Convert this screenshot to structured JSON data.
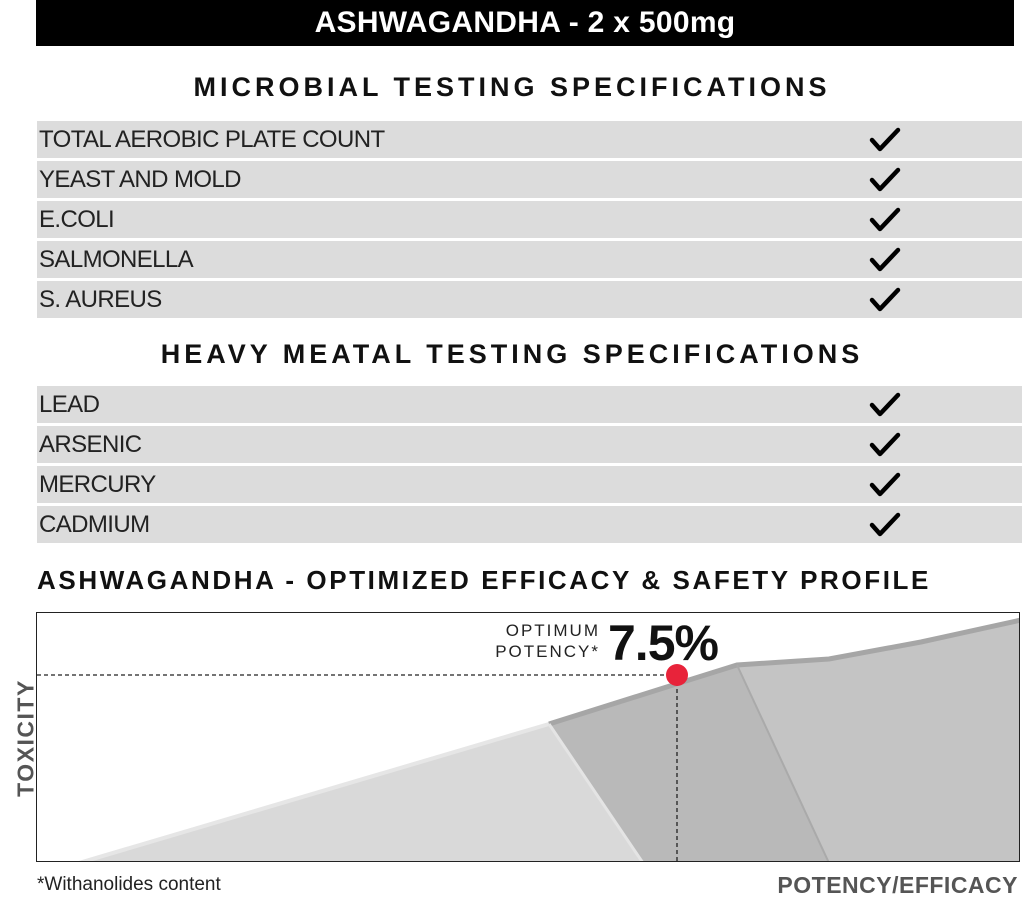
{
  "title": "ASHWAGANDHA - 2 x 500mg",
  "microbial": {
    "heading": "MICROBIAL TESTING SPECIFICATIONS",
    "rows": [
      {
        "label": "TOTAL AEROBIC PLATE COUNT",
        "passed": true
      },
      {
        "label": "YEAST AND MOLD",
        "passed": true
      },
      {
        "label": "E.COLI",
        "passed": true
      },
      {
        "label": "SALMONELLA",
        "passed": true
      },
      {
        "label": "S. AUREUS",
        "passed": true
      }
    ]
  },
  "heavy_metal": {
    "heading": "HEAVY MEATAL TESTING SPECIFICATIONS",
    "rows": [
      {
        "label": "LEAD",
        "passed": true
      },
      {
        "label": "ARSENIC",
        "passed": true
      },
      {
        "label": "MERCURY",
        "passed": true
      },
      {
        "label": "CADMIUM",
        "passed": true
      }
    ]
  },
  "profile": {
    "heading": "ASHWAGANDHA - OPTIMIZED EFFICACY & SAFETY PROFILE",
    "optimum_label_line1": "OPTIMUM",
    "optimum_label_line2": "POTENCY*",
    "optimum_value": "7.5%",
    "y_label": "TOXICITY",
    "x_label": "POTENCY/EFFICACY",
    "footnote": "*Withanolides content",
    "marker_color": "#e8233a"
  },
  "icons": {
    "check": "check-icon"
  }
}
